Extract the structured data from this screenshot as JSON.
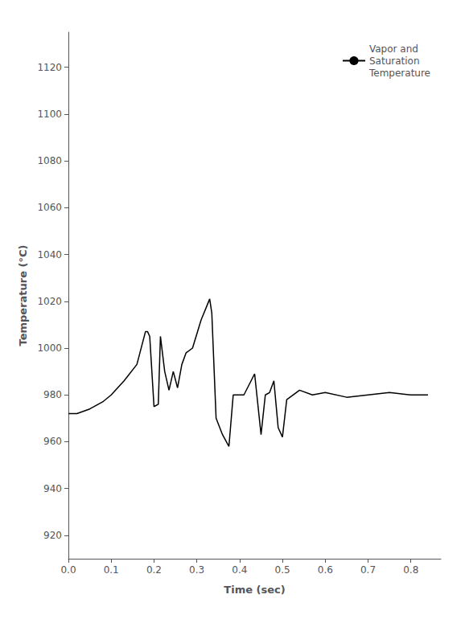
{
  "chart_data": {
    "type": "line",
    "xlabel": "Time (sec)",
    "ylabel": "Temperature (°C)",
    "x": [
      0.0,
      0.02,
      0.05,
      0.08,
      0.1,
      0.13,
      0.16,
      0.18,
      0.185,
      0.19,
      0.2,
      0.21,
      0.215,
      0.225,
      0.235,
      0.245,
      0.255,
      0.265,
      0.275,
      0.29,
      0.31,
      0.33,
      0.335,
      0.345,
      0.36,
      0.375,
      0.385,
      0.41,
      0.435,
      0.45,
      0.46,
      0.47,
      0.48,
      0.49,
      0.5,
      0.51,
      0.54,
      0.57,
      0.6,
      0.65,
      0.7,
      0.75,
      0.8,
      0.84
    ],
    "series": [
      {
        "name": "Vapor and\nSaturation\nTemperature",
        "color": "#000000",
        "values": [
          972,
          972,
          974,
          977,
          980,
          986,
          993,
          1007,
          1007,
          1005,
          975,
          976,
          1005,
          990,
          982,
          990,
          983,
          993,
          998,
          1000,
          1012,
          1021,
          1015,
          970,
          963,
          958,
          980,
          980,
          989,
          963,
          980,
          981,
          986,
          966,
          962,
          978,
          982,
          980,
          981,
          979,
          980,
          981,
          980,
          980
        ]
      }
    ],
    "xlim": [
      0.0,
      0.87
    ],
    "ylim": [
      910,
      1135
    ],
    "xticks": [
      {
        "value": 0.0,
        "label": "0.0"
      },
      0.1,
      0.2,
      0.3,
      0.4,
      0.5,
      0.6,
      0.7,
      0.8
    ],
    "yticks": [
      920,
      940,
      960,
      980,
      1000,
      1020,
      1040,
      1060,
      1080,
      1100,
      1120
    ],
    "grid": false,
    "legend": "upper right"
  }
}
